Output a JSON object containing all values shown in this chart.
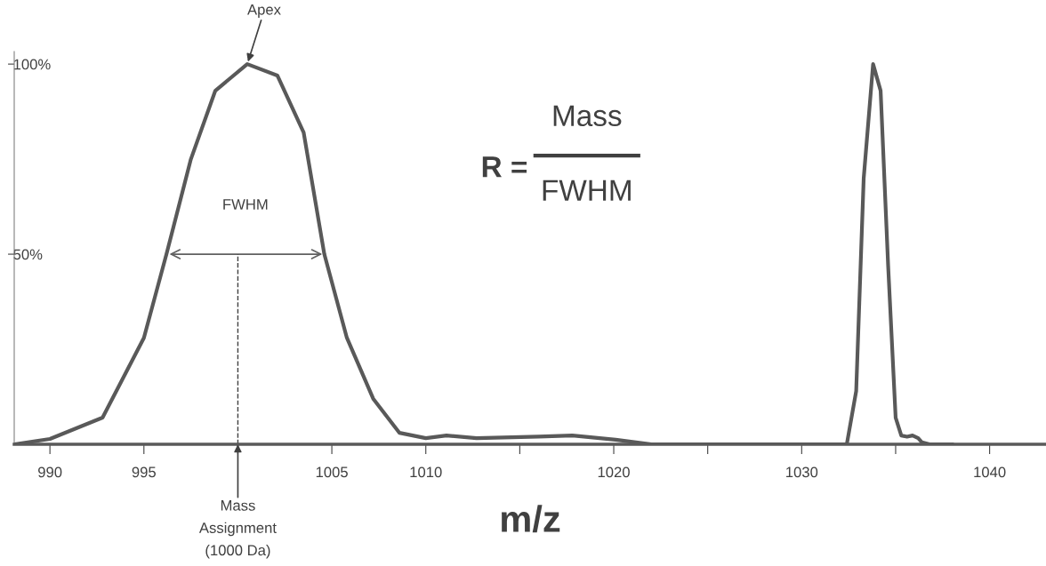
{
  "chart_data": {
    "type": "line",
    "xlabel": "m/z",
    "x": [
      988.1,
      990.0,
      992.8,
      995.0,
      996.2,
      997.5,
      998.8,
      1000.5,
      1002.1,
      1003.5,
      1004.6,
      1005.8,
      1007.2,
      1008.6,
      1010.0,
      1011.1,
      1012.7,
      1016.0,
      1017.8,
      1020.1,
      1022.0,
      1032.4,
      1032.9,
      1033.3,
      1033.8,
      1034.2,
      1034.6,
      1035.0,
      1035.3,
      1035.6,
      1035.9,
      1036.2,
      1036.4,
      1036.8,
      1038.0
    ],
    "series": [
      {
        "color": "#595959",
        "values": [
          0,
          1.4,
          7,
          28,
          50,
          75,
          93,
          100,
          97,
          82,
          50,
          28,
          12,
          3,
          1.6,
          2.3,
          1.6,
          2,
          2.3,
          1.2,
          0,
          0,
          14,
          70,
          100,
          93,
          47,
          7,
          2.3,
          2,
          2.3,
          1.6,
          0.5,
          0,
          0
        ]
      }
    ],
    "xlim": [
      988.1,
      1043
    ],
    "xticks": [
      990,
      995,
      {
        "value": 1000,
        "label": null
      },
      1005,
      1010,
      {
        "value": 1015,
        "label": null
      },
      1020,
      {
        "value": 1025,
        "label": null
      },
      1030,
      {
        "value": 1035,
        "label": null
      },
      1040
    ],
    "ylim": [
      0,
      103.3
    ],
    "yticks": [
      {
        "value": 50,
        "label": "50%"
      },
      {
        "value": 100,
        "label": "100%"
      }
    ],
    "grid": false,
    "legend": false,
    "marker": "none",
    "line_style": "solid",
    "ref_lines": [
      {
        "axis": "x",
        "value": 1000,
        "label": "Mass\nAssignment\n(1000 Da)",
        "color": "#404040",
        "line_style": "dashed"
      }
    ],
    "annotations": [
      {
        "text": "Apex",
        "x": 1000.5,
        "y": 100
      },
      "FWHM",
      "R =",
      "Mass",
      "FWHM"
    ]
  }
}
